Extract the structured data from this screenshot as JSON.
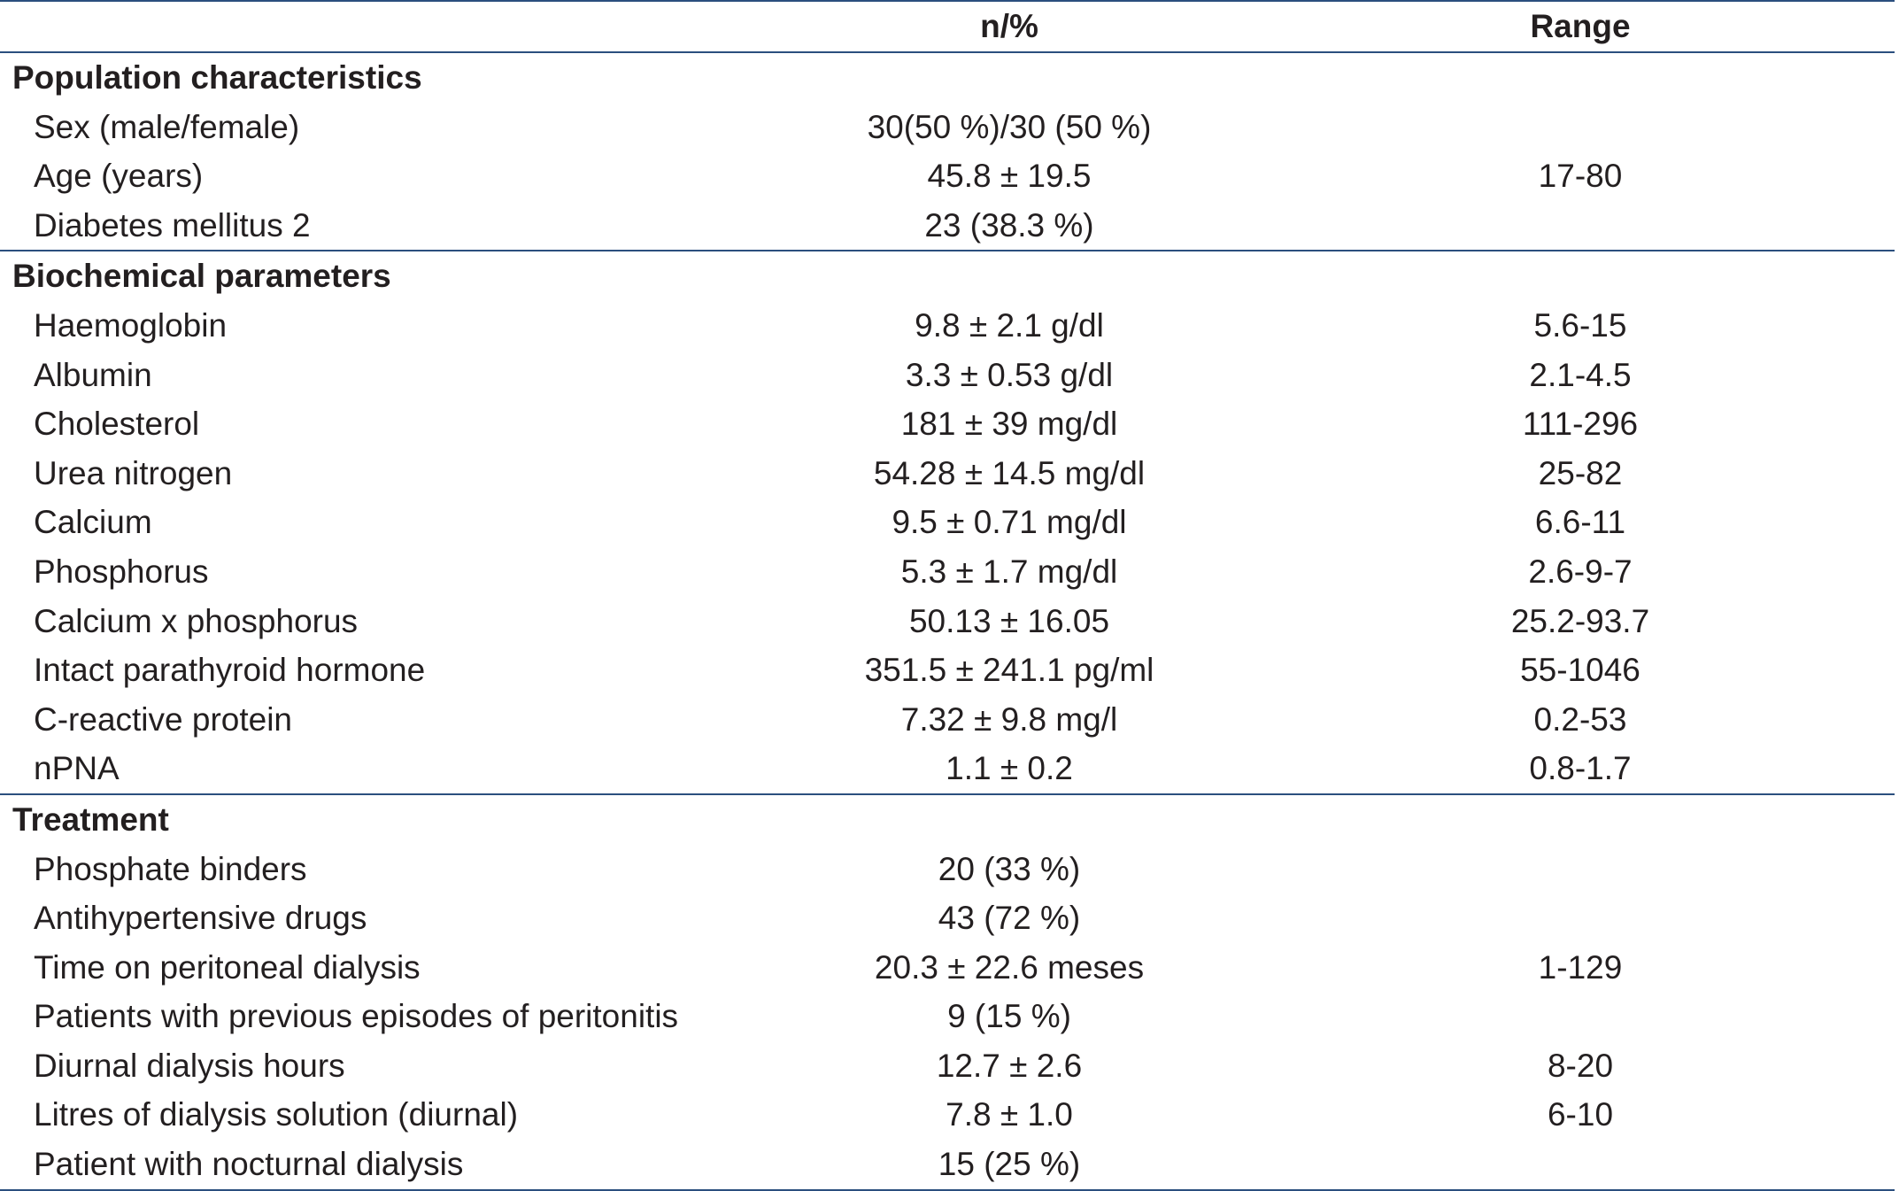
{
  "header": {
    "col_label": "",
    "col_value": "n/%",
    "col_range": "Range"
  },
  "sections": [
    {
      "title": "Population characteristics",
      "rows": [
        {
          "label": "Sex (male/female)",
          "value": "30(50 %)/30 (50 %)",
          "range": ""
        },
        {
          "label": "Age (years)",
          "value": "45.8 ± 19.5",
          "range": "17-80"
        },
        {
          "label": "Diabetes mellitus 2",
          "value": "23 (38.3 %)",
          "range": ""
        }
      ]
    },
    {
      "title": "Biochemical parameters",
      "rows": [
        {
          "label": "Haemoglobin",
          "value": "9.8 ± 2.1 g/dl",
          "range": "5.6-15"
        },
        {
          "label": "Albumin",
          "value": "3.3 ± 0.53 g/dl",
          "range": "2.1-4.5"
        },
        {
          "label": "Cholesterol",
          "value": "181 ± 39 mg/dl",
          "range": "111-296"
        },
        {
          "label": "Urea nitrogen",
          "value": "54.28 ± 14.5 mg/dl",
          "range": "25-82"
        },
        {
          "label": "Calcium",
          "value": "9.5 ± 0.71 mg/dl",
          "range": "6.6-11"
        },
        {
          "label": "Phosphorus",
          "value": "5.3 ± 1.7 mg/dl",
          "range": "2.6-9-7"
        },
        {
          "label": "Calcium x phosphorus",
          "value": "50.13 ± 16.05",
          "range": "25.2-93.7"
        },
        {
          "label": "Intact parathyroid hormone",
          "value": "351.5 ± 241.1 pg/ml",
          "range": "55-1046"
        },
        {
          "label": "C-reactive protein",
          "value": "7.32 ± 9.8 mg/l",
          "range": "0.2-53"
        },
        {
          "label": "nPNA",
          "value": "1.1 ± 0.2",
          "range": "0.8-1.7"
        }
      ]
    },
    {
      "title": "Treatment",
      "rows": [
        {
          "label": "Phosphate binders",
          "value": "20 (33 %)",
          "range": ""
        },
        {
          "label": "Antihypertensive drugs",
          "value": "43 (72 %)",
          "range": ""
        },
        {
          "label": "Time on peritoneal dialysis",
          "value": "20.3 ± 22.6 meses",
          "range": "1-129"
        },
        {
          "label": "Patients with previous episodes of peritonitis",
          "value": "9 (15 %)",
          "range": ""
        },
        {
          "label": "Diurnal dialysis hours",
          "value": "12.7 ± 2.6",
          "range": "8-20"
        },
        {
          "label": "Litres of dialysis solution (diurnal)",
          "value": "7.8 ± 1.0",
          "range": "6-10"
        },
        {
          "label": "Patient with nocturnal dialysis",
          "value": "15 (25 %)",
          "range": ""
        }
      ]
    }
  ]
}
